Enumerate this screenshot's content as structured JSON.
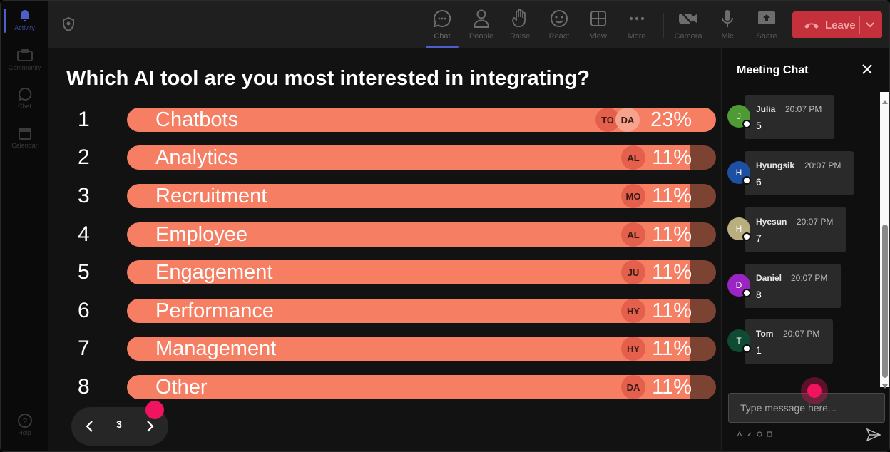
{
  "rail": {
    "items": [
      {
        "label": "Activity",
        "icon": "bell-icon",
        "active": true
      },
      {
        "label": "Community",
        "icon": "community-icon"
      },
      {
        "label": "Chat",
        "icon": "chat-icon"
      },
      {
        "label": "Calendar",
        "icon": "calendar-icon"
      },
      {
        "label": "Help",
        "icon": "help-icon"
      }
    ]
  },
  "toolbar": {
    "chat": "Chat",
    "people": "People",
    "raise": "Raise",
    "react": "React",
    "view": "View",
    "more": "More",
    "camera": "Camera",
    "mic": "Mic",
    "share": "Share",
    "leave": "Leave",
    "accent": "#4e5fc9",
    "leave_color": "#c4313b"
  },
  "poll": {
    "question": "Which AI tool are you most interested in integrating?",
    "bar_color": "#f57e63",
    "track_color": "#7c4332",
    "options": [
      {
        "rank": "1",
        "label": "Chatbots",
        "percent": "23%",
        "share": 0.23,
        "voters": [
          "TO",
          "DA"
        ]
      },
      {
        "rank": "2",
        "label": "Analytics",
        "percent": "11%",
        "share": 0.11,
        "voters": [
          "AL"
        ]
      },
      {
        "rank": "3",
        "label": "Recruitment",
        "percent": "11%",
        "share": 0.11,
        "voters": [
          "MO"
        ]
      },
      {
        "rank": "4",
        "label": "Employee",
        "percent": "11%",
        "share": 0.11,
        "voters": [
          "AL"
        ]
      },
      {
        "rank": "5",
        "label": "Engagement",
        "percent": "11%",
        "share": 0.11,
        "voters": [
          "JU"
        ]
      },
      {
        "rank": "6",
        "label": "Performance",
        "percent": "11%",
        "share": 0.11,
        "voters": [
          "HY"
        ]
      },
      {
        "rank": "7",
        "label": "Management",
        "percent": "11%",
        "share": 0.11,
        "voters": [
          "HY"
        ]
      },
      {
        "rank": "8",
        "label": "Other",
        "percent": "11%",
        "share": 0.11,
        "voters": [
          "DA"
        ]
      }
    ],
    "page": "3"
  },
  "chat": {
    "title": "Meeting Chat",
    "messages": [
      {
        "initial": "J",
        "name": "Julia",
        "time": "20:07 PM",
        "text": "5",
        "color": "#4e9a35"
      },
      {
        "initial": "H",
        "name": "Hyungsik",
        "time": "20:07 PM",
        "text": "6",
        "color": "#1d4fa3"
      },
      {
        "initial": "H",
        "name": "Hyesun",
        "time": "20:07 PM",
        "text": "7",
        "color": "#b9ae7e"
      },
      {
        "initial": "D",
        "name": "Daniel",
        "time": "20:07 PM",
        "text": "8",
        "color": "#9a25c2"
      },
      {
        "initial": "T",
        "name": "Tom",
        "time": "20:07 PM",
        "text": "1",
        "color": "#0f4a32"
      }
    ],
    "input_placeholder": "Type message here..."
  }
}
